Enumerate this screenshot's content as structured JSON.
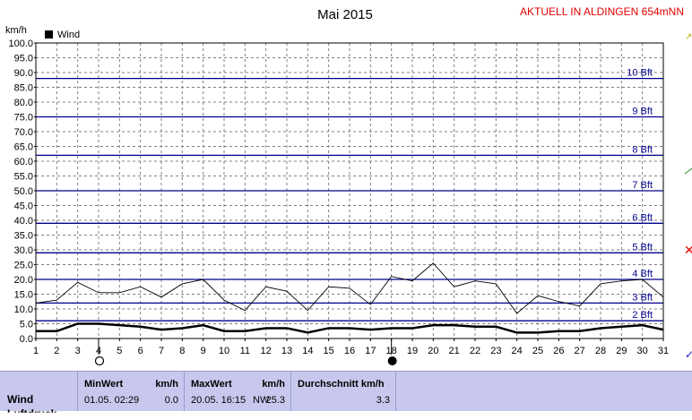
{
  "chart_data": {
    "type": "line",
    "title": "Mai 2015",
    "station_label": "AKTUELL IN ALDINGEN 654mNN",
    "y_unit": "km/h",
    "ylim": [
      0,
      100
    ],
    "y_ticks": [
      "0.0",
      "5.0",
      "10.0",
      "15.0",
      "20.0",
      "25.0",
      "30.0",
      "35.0",
      "40.0",
      "45.0",
      "50.0",
      "55.0",
      "60.0",
      "65.0",
      "70.0",
      "75.0",
      "80.0",
      "85.0",
      "90.0",
      "95.0",
      "100.0"
    ],
    "x": [
      1,
      2,
      3,
      4,
      5,
      6,
      7,
      8,
      9,
      10,
      11,
      12,
      13,
      14,
      15,
      16,
      17,
      18,
      19,
      20,
      21,
      22,
      23,
      24,
      25,
      26,
      27,
      28,
      29,
      30,
      31
    ],
    "grid": true,
    "legend": {
      "position": "top-left",
      "entries": [
        "Wind"
      ]
    },
    "beaufort_lines": [
      {
        "label": "2 Bft",
        "value": 6
      },
      {
        "label": "3 Bft",
        "value": 12
      },
      {
        "label": "4 Bft",
        "value": 20
      },
      {
        "label": "5 Bft",
        "value": 29
      },
      {
        "label": "6 Bft",
        "value": 39
      },
      {
        "label": "7 Bft",
        "value": 50
      },
      {
        "label": "8 Bft",
        "value": 62
      },
      {
        "label": "9 Bft",
        "value": 75
      },
      {
        "label": "10 Bft",
        "value": 88
      }
    ],
    "series": [
      {
        "name": "Wind",
        "color": "#000000",
        "values": [
          2.5,
          2.5,
          5.0,
          5.0,
          4.5,
          4.0,
          3.0,
          3.5,
          4.5,
          2.5,
          2.5,
          3.5,
          3.5,
          2.0,
          3.5,
          3.5,
          3.0,
          3.5,
          3.5,
          4.5,
          4.5,
          4.0,
          4.0,
          2.0,
          2.0,
          2.5,
          2.5,
          3.5,
          4.0,
          4.5,
          3.0
        ]
      },
      {
        "color": "#000000",
        "values": [
          12.0,
          13.0,
          19.0,
          15.5,
          15.5,
          17.5,
          14.0,
          18.5,
          20.0,
          13.0,
          9.5,
          17.5,
          16.0,
          9.5,
          17.5,
          17.0,
          11.5,
          21.0,
          19.5,
          25.5,
          17.5,
          19.5,
          18.5,
          8.5,
          14.5,
          12.5,
          11.0,
          18.5,
          19.5,
          20.0,
          14.0
        ]
      }
    ],
    "markers": [
      {
        "day": 4,
        "symbol": "full-moon"
      },
      {
        "day": 18,
        "symbol": "new-moon"
      }
    ]
  },
  "stats": {
    "row_label": "Wind",
    "min": {
      "header": "MinWert",
      "unit": "km/h",
      "time": "01.05.  02:29",
      "value": "0.0"
    },
    "max": {
      "header": "MaxWert",
      "unit": "km/h",
      "time": "20.05.  16:15",
      "dir": "NW",
      "value": "25.3"
    },
    "avg": {
      "header": "Durchschnitt km/h",
      "value": "3.3"
    }
  },
  "colors": {
    "beaufort": "#00008b",
    "grid": "#808080",
    "station": "#e00000",
    "panel": "#c8c8ee"
  }
}
